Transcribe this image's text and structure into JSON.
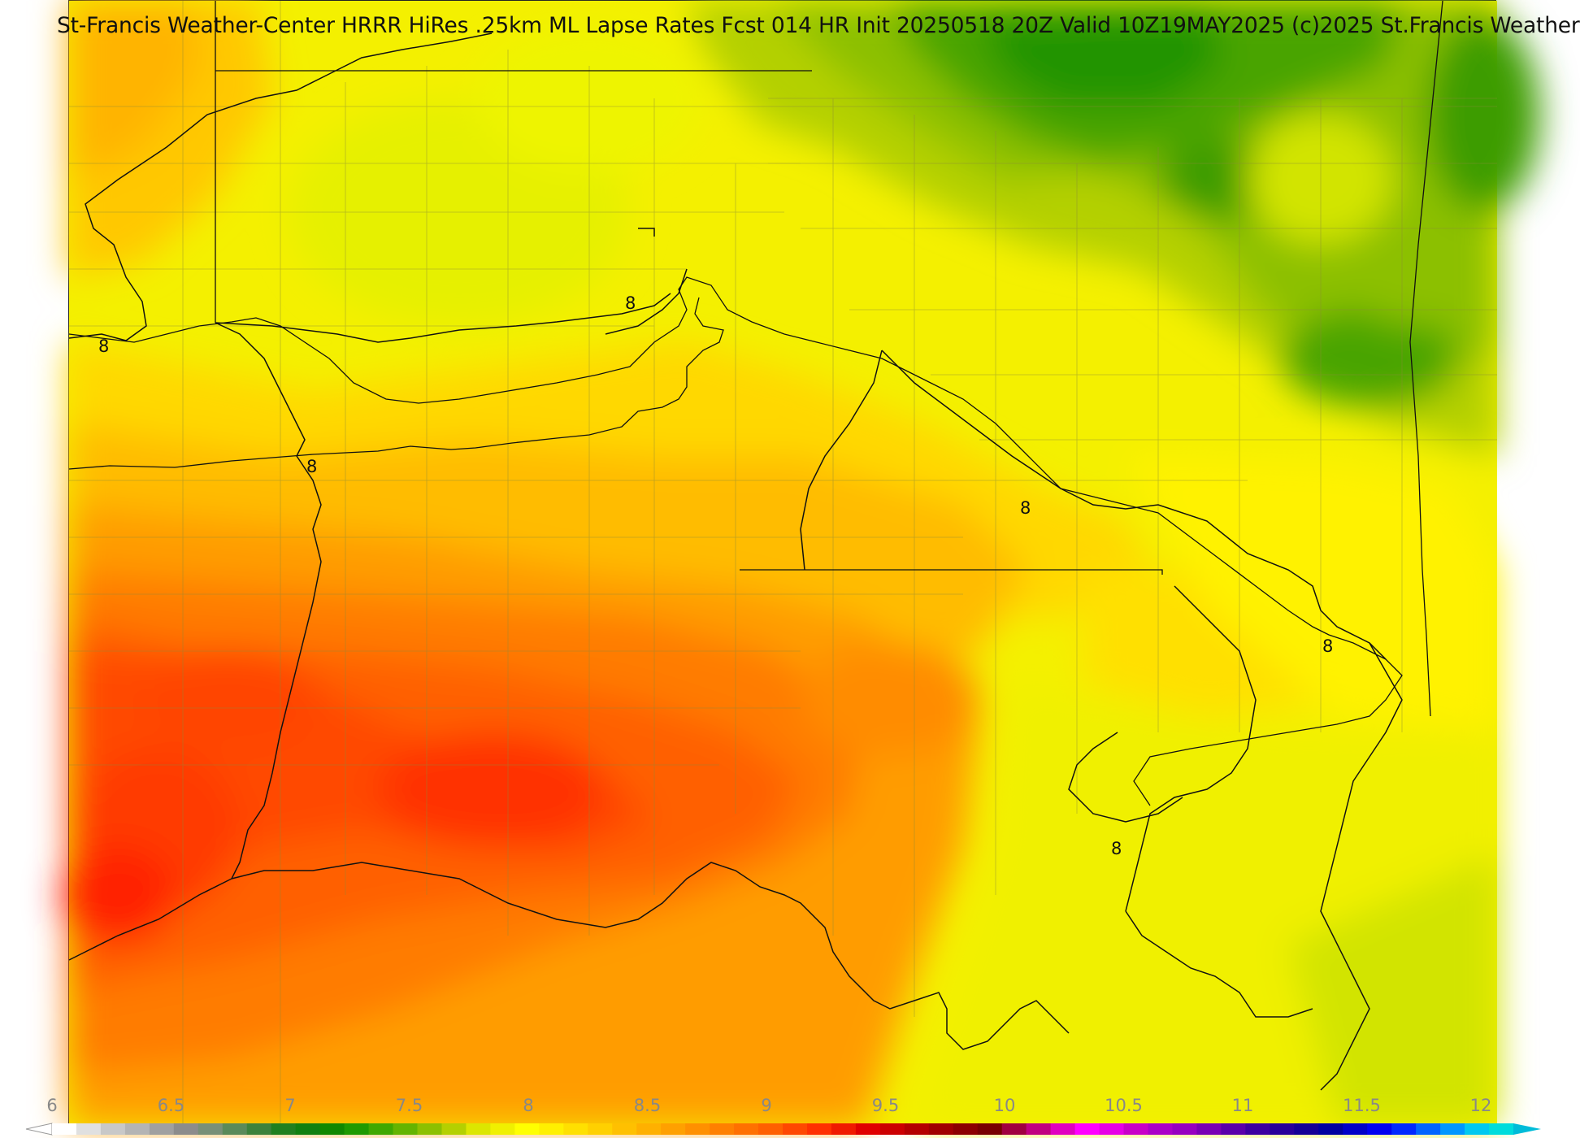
{
  "title": "St-Francis Weather-Center HRRR HiRes .25km ML Lapse Rates  Fcst 014 HR Init 20250518 20Z  Valid 10Z19MAY2025    (c)2025 St.Francis Weather",
  "contour_labels": [
    "8",
    "8",
    "8",
    "8",
    "8",
    "8"
  ],
  "colorbar": {
    "ticks": [
      "6",
      "6.5",
      "7",
      "7.5",
      "8",
      "8.5",
      "9",
      "9.5",
      "10",
      "10.5",
      "11",
      "11.5",
      "12"
    ],
    "colors": [
      "#ffffff",
      "#e0e0e0",
      "#c8c8c8",
      "#b4b4b4",
      "#a0a0a0",
      "#8c8c8c",
      "#789078",
      "#5a8a5a",
      "#3c823c",
      "#208020",
      "#108010",
      "#108800",
      "#1e9a00",
      "#3fa800",
      "#64b400",
      "#8cc000",
      "#b4d000",
      "#dce600",
      "#f0f000",
      "#ffff00",
      "#fff000",
      "#ffe000",
      "#ffd000",
      "#ffc000",
      "#ffb000",
      "#ffa000",
      "#ff9000",
      "#ff8000",
      "#ff7000",
      "#ff6000",
      "#ff4800",
      "#ff3000",
      "#f01a00",
      "#e00000",
      "#cc0000",
      "#b40000",
      "#a00000",
      "#8c0000",
      "#780000",
      "#a00040",
      "#c00080",
      "#e000c0",
      "#ff00ff",
      "#e600e6",
      "#c800c8",
      "#aa00c8",
      "#9600c0",
      "#7800b4",
      "#5a00aa",
      "#3c00a0",
      "#28009a",
      "#140096",
      "#0000a0",
      "#0000c8",
      "#0000f0",
      "#0028ff",
      "#0064ff",
      "#0096ff",
      "#00c8f0",
      "#00dcdc"
    ]
  },
  "colors": {
    "contour_line": "#111111",
    "county_line": "#8a8a3a"
  }
}
